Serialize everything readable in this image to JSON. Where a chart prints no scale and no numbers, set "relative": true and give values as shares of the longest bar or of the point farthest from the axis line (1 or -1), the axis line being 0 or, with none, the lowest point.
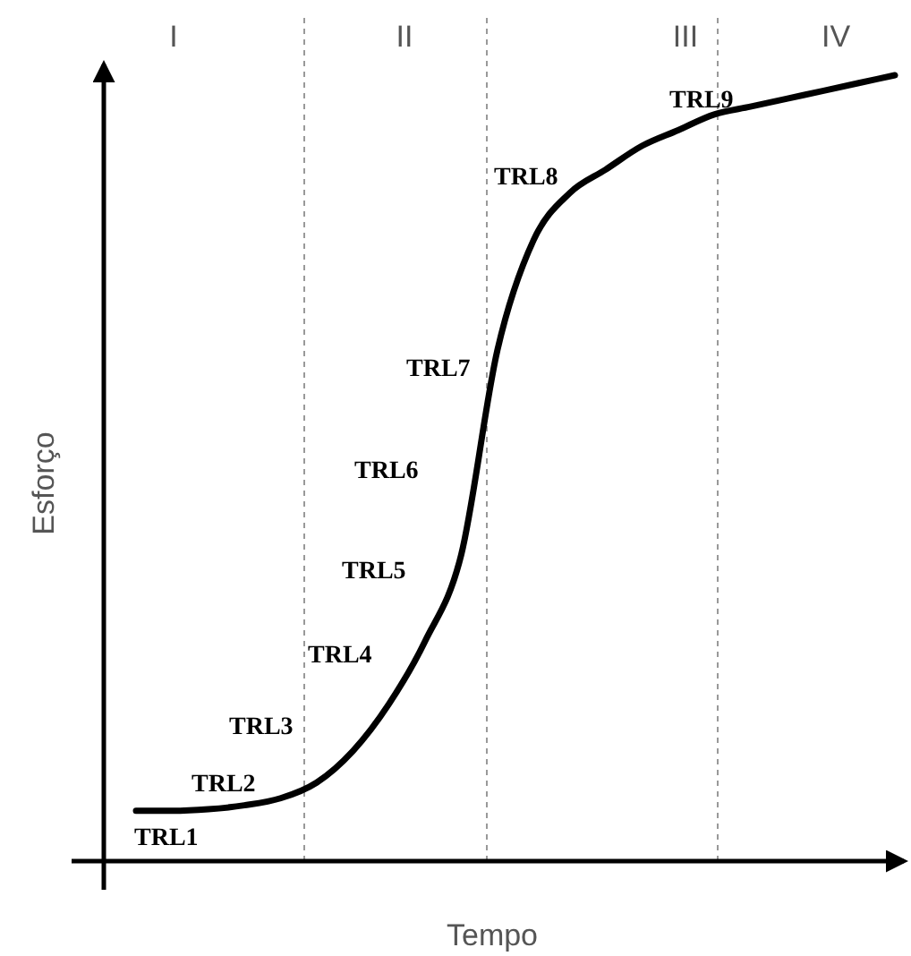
{
  "chart_data": {
    "type": "line",
    "relative": true,
    "xlabel": "Tempo",
    "ylabel": "Esforço",
    "categories": [
      null,
      null,
      null,
      null,
      null,
      null,
      null,
      null,
      null,
      null,
      null,
      null,
      null,
      null,
      null,
      null,
      null,
      null,
      null,
      null,
      null,
      null
    ],
    "series": [
      {
        "color": "#000000",
        "values": [
          0.064,
          0.064,
          0.066,
          0.071,
          0.08,
          0.1,
          0.14,
          0.2,
          0.28,
          0.39,
          0.65,
          0.79,
          0.85,
          0.88,
          0.91,
          0.93,
          0.95,
          0.96,
          0.97,
          0.98,
          0.99,
          1
        ]
      }
    ],
    "annotations": [
      "I",
      "II",
      "III",
      "IV",
      "TRL1",
      "TRL2",
      "TRL3",
      "TRL4",
      "TRL5",
      "TRL6",
      "TRL7",
      "TRL8",
      "TRL9"
    ]
  }
}
